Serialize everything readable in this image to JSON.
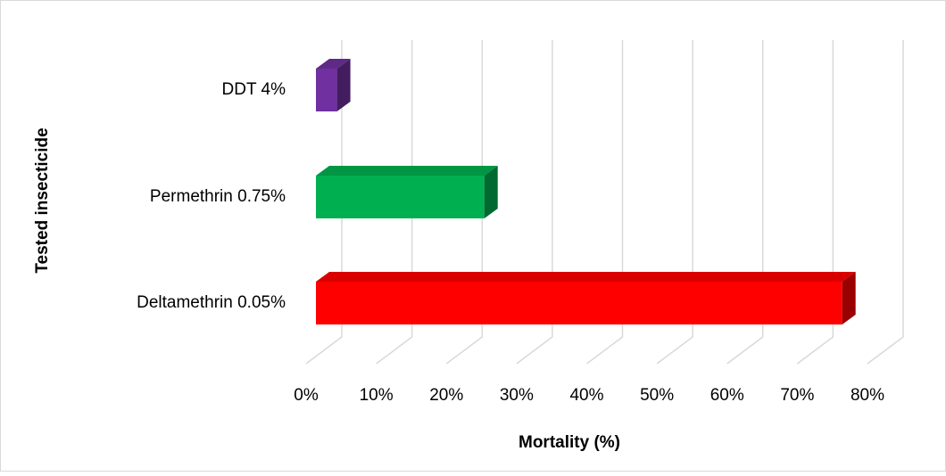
{
  "chart_data": {
    "type": "bar3d-horizontal",
    "x_label": "Mortality (%)",
    "y_label": "Tested insecticide",
    "categories": [
      "DDT 4%",
      "Permethrin 0.75%",
      "Deltamethrin 0.05%"
    ],
    "values": [
      3,
      24,
      75
    ],
    "colors": [
      "#7030a0",
      "#00b050",
      "#ff0000"
    ],
    "xlim": [
      0,
      80
    ],
    "xticks": [
      {
        "value": 0,
        "label": "0%"
      },
      {
        "value": 10,
        "label": "10%"
      },
      {
        "value": 20,
        "label": "20%"
      },
      {
        "value": 30,
        "label": "30%"
      },
      {
        "value": 40,
        "label": "40%"
      },
      {
        "value": 50,
        "label": "50%"
      },
      {
        "value": 60,
        "label": "60%"
      },
      {
        "value": 70,
        "label": "70%"
      },
      {
        "value": 80,
        "label": "80%"
      }
    ],
    "grid": true
  }
}
